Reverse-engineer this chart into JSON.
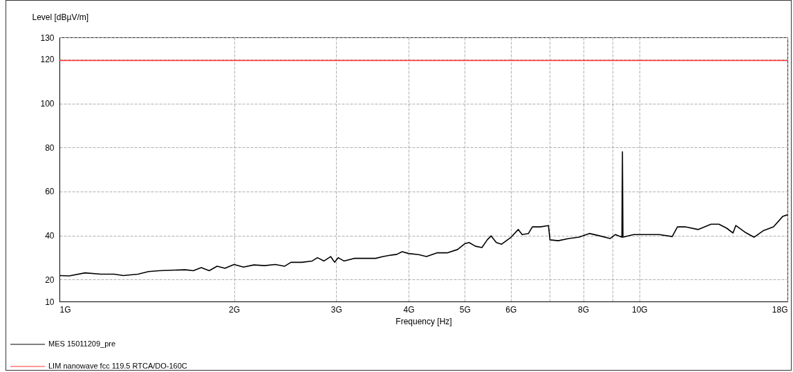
{
  "chart_data": {
    "type": "line",
    "xlabel": "Frequency [Hz]",
    "ylabel": "Level [dBµV/m]",
    "log": "x",
    "grid": true,
    "legend": "bottom",
    "xlim": [
      1,
      18
    ],
    "ylim": [
      10,
      130
    ],
    "xticks": [
      {
        "value": 1,
        "label": "1G"
      },
      {
        "value": 2,
        "label": "2G"
      },
      {
        "value": 3,
        "label": "3G"
      },
      {
        "value": 4,
        "label": "4G"
      },
      {
        "value": 5,
        "label": "5G"
      },
      {
        "value": 6,
        "label": "6G"
      },
      {
        "value": 7,
        "label": null
      },
      {
        "value": 8,
        "label": "8G"
      },
      {
        "value": 9,
        "label": null
      },
      {
        "value": 10,
        "label": "10G"
      },
      {
        "value": 18,
        "label": "18G"
      }
    ],
    "yticks": [
      10,
      20,
      40,
      60,
      80,
      100,
      120,
      130
    ],
    "series": [
      {
        "name": "MES  15011209_pre",
        "color": "#000000",
        "x": [
          1.0,
          1.04,
          1.107,
          1.179,
          1.242,
          1.289,
          1.366,
          1.424,
          1.485,
          1.565,
          1.649,
          1.701,
          1.756,
          1.812,
          1.87,
          1.929,
          2.0,
          2.076,
          2.164,
          2.258,
          2.356,
          2.443,
          2.507,
          2.617,
          2.728,
          2.785,
          2.859,
          2.935,
          2.982,
          3.024,
          3.093,
          3.227,
          3.366,
          3.51,
          3.614,
          3.738,
          3.816,
          3.898,
          4.0,
          4.163,
          4.293,
          4.476,
          4.661,
          4.857,
          4.997,
          5.084,
          5.216,
          5.352,
          5.465,
          5.55,
          5.666,
          5.786,
          6.007,
          6.182,
          6.278,
          6.437,
          6.537,
          6.742,
          6.968,
          7.011,
          7.245,
          7.549,
          7.866,
          8.198,
          8.545,
          8.905,
          9.091,
          9.328,
          9.348,
          9.367,
          9.77,
          10.28,
          10.82,
          11.39,
          11.63,
          11.99,
          12.62,
          13.29,
          13.71,
          14.14,
          14.5,
          14.66,
          15.2,
          15.76,
          16.34,
          17.03,
          17.66,
          18.0
        ],
        "values": [
          21.8,
          21.6,
          23.0,
          22.4,
          22.4,
          21.8,
          22.4,
          23.6,
          24.0,
          24.2,
          24.4,
          24.0,
          25.4,
          24.0,
          26.0,
          25.1,
          26.8,
          25.6,
          26.6,
          26.3,
          26.8,
          26.0,
          27.8,
          27.8,
          28.4,
          29.9,
          28.4,
          30.4,
          27.8,
          29.9,
          28.4,
          29.6,
          29.6,
          29.6,
          30.4,
          31.1,
          31.4,
          32.6,
          31.8,
          31.3,
          30.4,
          32.1,
          32.1,
          33.6,
          36.2,
          36.8,
          35.1,
          34.5,
          38.0,
          39.8,
          36.8,
          36.0,
          39.2,
          42.7,
          40.4,
          40.9,
          43.9,
          43.9,
          44.5,
          38.0,
          37.6,
          38.6,
          39.2,
          40.9,
          39.8,
          38.6,
          40.4,
          39.2,
          78.0,
          39.2,
          40.4,
          40.4,
          40.4,
          39.5,
          43.9,
          43.9,
          42.7,
          45.1,
          45.1,
          43.3,
          41.1,
          44.5,
          41.5,
          39.2,
          42.1,
          43.9,
          48.6,
          49.4
        ]
      },
      {
        "name": "LIM  nanowave fcc 119.5    RTCA/DO-160C",
        "color": "#ff3030",
        "x": [
          1,
          18
        ],
        "values": [
          119.5,
          119.5
        ]
      }
    ]
  }
}
